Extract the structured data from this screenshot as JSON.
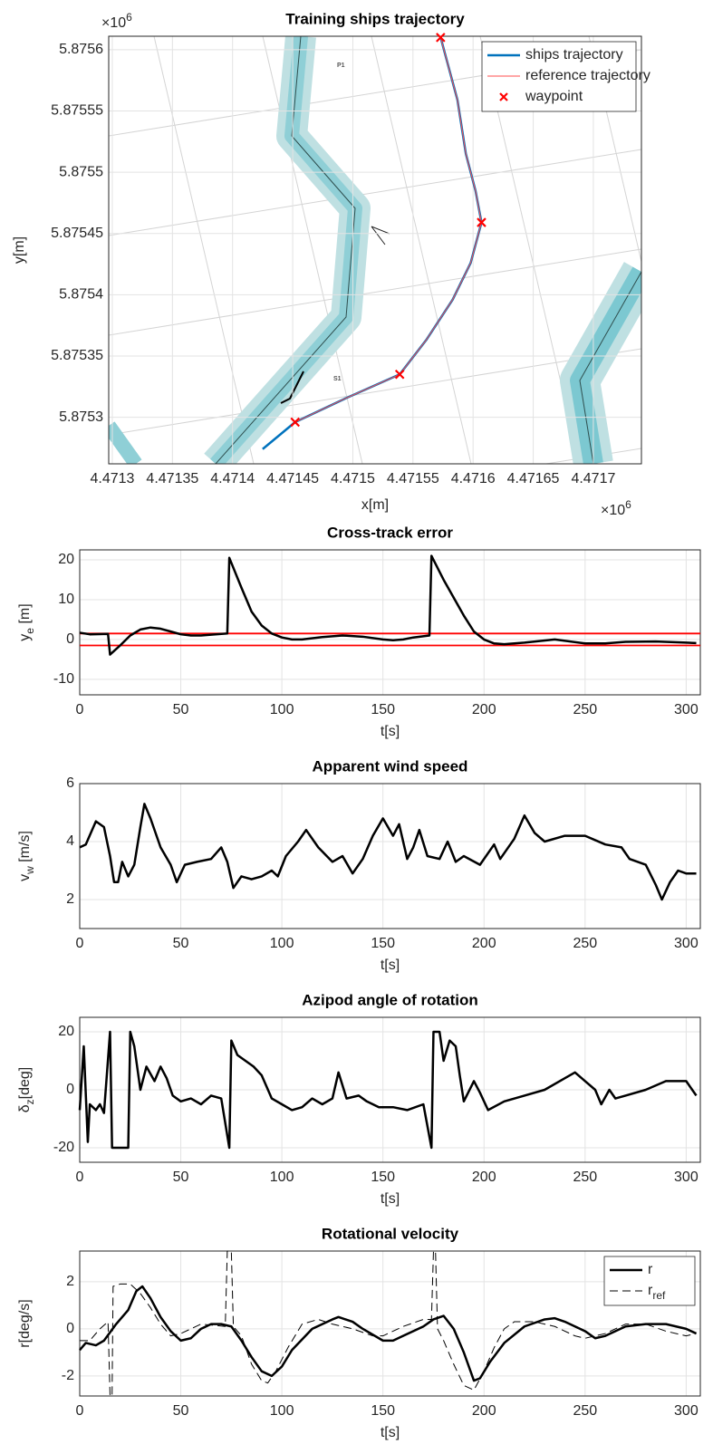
{
  "chart_data": [
    {
      "type": "line",
      "title": "Training ships trajectory",
      "xlabel": "x[m]",
      "ylabel": "y[m]",
      "x_exponent": [
        "×10",
        "6"
      ],
      "y_exponent": [
        "×10",
        "6"
      ],
      "xlim": [
        4.471297,
        4.47174
      ],
      "ylim": [
        5.875262,
        5.875611
      ],
      "xticks": [
        4.4713,
        4.47135,
        4.4714,
        4.47145,
        4.4715,
        4.47155,
        4.4716,
        4.47165,
        4.4717
      ],
      "yticks": [
        5.8753,
        5.87535,
        5.8754,
        5.87545,
        5.8755,
        5.87555,
        5.8756
      ],
      "grid": true,
      "legend": "upper right",
      "annotations": [
        "P1",
        "S1"
      ],
      "series": [
        {
          "name": "ships trajectory",
          "color": "#0072bd",
          "style": "thick",
          "x": [
            4.471573,
            4.471587,
            4.471594,
            4.471602,
            4.471607,
            4.471598,
            4.471583,
            4.471561,
            4.471539,
            4.471493,
            4.471452,
            4.471425
          ],
          "values": [
            5.87561,
            5.875559,
            5.875515,
            5.875485,
            5.875459,
            5.875426,
            5.875396,
            5.875363,
            5.875335,
            5.875315,
            5.875296,
            5.875274
          ]
        },
        {
          "name": "reference trajectory",
          "color": "#ff4d4d",
          "style": "thin",
          "x": [
            4.471573,
            4.471587,
            4.471594,
            4.471602,
            4.471607,
            4.471598,
            4.471583,
            4.471561,
            4.471539,
            4.471493,
            4.471452
          ],
          "values": [
            5.87561,
            5.875559,
            5.875515,
            5.875485,
            5.875459,
            5.875426,
            5.875396,
            5.875363,
            5.875335,
            5.875315,
            5.875296
          ]
        },
        {
          "name": "waypoint",
          "color": "#ff0000",
          "marker": "x",
          "x": [
            4.471573,
            4.471607,
            4.471539,
            4.471452
          ],
          "values": [
            5.87561,
            5.875459,
            5.875335,
            5.875296
          ]
        }
      ]
    },
    {
      "type": "line",
      "title": "Cross-track error",
      "xlabel": "t[s]",
      "ylabel": [
        "y",
        "e",
        " [m]"
      ],
      "xlim": [
        0,
        307
      ],
      "ylim": [
        -13.9,
        22.5
      ],
      "xticks": [
        0,
        50,
        100,
        150,
        200,
        250,
        300
      ],
      "yticks": [
        -10,
        0,
        10,
        20
      ],
      "grid": true,
      "hlines": {
        "color": "#ff0000",
        "values": [
          1.5,
          -1.5
        ]
      },
      "x": [
        0,
        5,
        14,
        15,
        20,
        25,
        30,
        35,
        40,
        45,
        50,
        55,
        60,
        65,
        73,
        74,
        80,
        85,
        90,
        95,
        100,
        105,
        110,
        120,
        130,
        140,
        150,
        155,
        160,
        165,
        173,
        174,
        180,
        190,
        195,
        200,
        205,
        210,
        220,
        235,
        250,
        260,
        270,
        285,
        300,
        305
      ],
      "series": [
        {
          "color": "#000000",
          "values": [
            1.7,
            1.3,
            1.4,
            -3.8,
            -1.5,
            1,
            2.5,
            3,
            2.7,
            2,
            1.3,
            1,
            1,
            1.2,
            1.5,
            20.5,
            13,
            7,
            3.5,
            1.5,
            0.5,
            0,
            0,
            0.6,
            1,
            0.7,
            0,
            -0.2,
            0,
            0.5,
            1,
            21,
            15,
            6,
            2,
            0,
            -1,
            -1.2,
            -0.8,
            0,
            -1,
            -1,
            -0.6,
            -0.5,
            -0.8,
            -0.9
          ]
        }
      ]
    },
    {
      "type": "line",
      "title": "Apparent wind speed",
      "xlabel": "t[s]",
      "ylabel": [
        "v",
        "w",
        " [m/s]"
      ],
      "xlim": [
        0,
        307
      ],
      "ylim": [
        1,
        6
      ],
      "xticks": [
        0,
        50,
        100,
        150,
        200,
        250,
        300
      ],
      "yticks": [
        2,
        4,
        6
      ],
      "grid": true,
      "x": [
        0,
        3,
        8,
        12,
        15,
        17,
        19,
        21,
        24,
        27,
        30,
        32,
        35,
        40,
        45,
        48,
        52,
        58,
        65,
        70,
        73,
        76,
        80,
        85,
        90,
        95,
        98,
        102,
        108,
        112,
        118,
        125,
        130,
        135,
        140,
        145,
        150,
        155,
        158,
        162,
        165,
        168,
        172,
        178,
        182,
        186,
        190,
        198,
        205,
        208,
        215,
        220,
        225,
        230,
        240,
        250,
        260,
        268,
        272,
        280,
        285,
        288,
        292,
        296,
        300,
        305
      ],
      "series": [
        {
          "color": "#000000",
          "values": [
            3.8,
            3.9,
            4.7,
            4.5,
            3.5,
            2.6,
            2.6,
            3.3,
            2.8,
            3.2,
            4.5,
            5.3,
            4.8,
            3.8,
            3.2,
            2.6,
            3.2,
            3.3,
            3.4,
            3.8,
            3.3,
            2.4,
            2.8,
            2.7,
            2.8,
            3,
            2.8,
            3.5,
            4,
            4.4,
            3.8,
            3.3,
            3.5,
            2.9,
            3.4,
            4.2,
            4.8,
            4.2,
            4.6,
            3.4,
            3.8,
            4.4,
            3.5,
            3.4,
            4,
            3.3,
            3.5,
            3.2,
            3.9,
            3.4,
            4.1,
            4.9,
            4.3,
            4,
            4.2,
            4.2,
            3.9,
            3.8,
            3.4,
            3.2,
            2.5,
            2,
            2.6,
            3,
            2.9,
            2.9
          ]
        }
      ]
    },
    {
      "type": "line",
      "title": "Azipod angle of rotation",
      "xlabel": "t[s]",
      "ylabel": [
        "δ",
        "z",
        "[deg]"
      ],
      "xlim": [
        0,
        307
      ],
      "ylim": [
        -25,
        25
      ],
      "xticks": [
        0,
        50,
        100,
        150,
        200,
        250,
        300
      ],
      "yticks": [
        -20,
        0,
        20
      ],
      "grid": true,
      "x": [
        0,
        2,
        4,
        5,
        8,
        10,
        12,
        15,
        16,
        20,
        24,
        25,
        27,
        30,
        33,
        37,
        40,
        43,
        46,
        50,
        55,
        60,
        65,
        70,
        74,
        75,
        78,
        82,
        86,
        90,
        95,
        100,
        105,
        110,
        115,
        120,
        125,
        128,
        132,
        138,
        142,
        148,
        155,
        162,
        170,
        174,
        175,
        178,
        180,
        183,
        186,
        188,
        190,
        195,
        198,
        202,
        210,
        220,
        230,
        240,
        245,
        250,
        255,
        258,
        262,
        265,
        270,
        280,
        290,
        300,
        305
      ],
      "series": [
        {
          "color": "#000000",
          "values": [
            -7,
            15,
            -18,
            -5,
            -7,
            -5,
            -8,
            20,
            -20,
            -20,
            -20,
            20,
            15,
            0,
            8,
            3,
            8,
            4,
            -2,
            -4,
            -3,
            -5,
            -2,
            -3,
            -20,
            17,
            12,
            10,
            8,
            5,
            -3,
            -5,
            -7,
            -6,
            -3,
            -5,
            -3,
            6,
            -3,
            -2,
            -4,
            -6,
            -6,
            -7,
            -5,
            -20,
            20,
            20,
            10,
            17,
            15,
            5,
            -4,
            3,
            -1,
            -7,
            -4,
            -2,
            0,
            4,
            6,
            3,
            0,
            -5,
            0,
            -3,
            -2,
            0,
            3,
            3,
            -2
          ]
        }
      ]
    },
    {
      "type": "line",
      "title": "Rotational velocity",
      "xlabel": "t[s]",
      "ylabel": "r[deg/s]",
      "xlim": [
        0,
        307
      ],
      "ylim": [
        -2.85,
        3.3
      ],
      "xticks": [
        0,
        50,
        100,
        150,
        200,
        250,
        300
      ],
      "yticks": [
        -2,
        0,
        2
      ],
      "grid": true,
      "legend": "upper right",
      "series": [
        {
          "name": [
            "r"
          ],
          "color": "#000000",
          "style": "thick",
          "x": [
            0,
            3,
            8,
            12,
            18,
            24,
            28,
            31,
            35,
            40,
            45,
            50,
            55,
            60,
            65,
            70,
            75,
            80,
            85,
            90,
            95,
            100,
            105,
            115,
            125,
            128,
            135,
            140,
            150,
            155,
            160,
            170,
            175,
            180,
            185,
            190,
            195,
            198,
            203,
            210,
            220,
            230,
            235,
            240,
            250,
            255,
            260,
            270,
            280,
            290,
            300,
            305
          ],
          "values": [
            -0.9,
            -0.6,
            -0.7,
            -0.5,
            0.2,
            0.8,
            1.6,
            1.8,
            1.3,
            0.5,
            -0.1,
            -0.5,
            -0.4,
            0,
            0.2,
            0.2,
            0.1,
            -0.5,
            -1.2,
            -1.8,
            -2,
            -1.6,
            -0.9,
            0,
            0.4,
            0.5,
            0.3,
            0,
            -0.5,
            -0.5,
            -0.3,
            0.1,
            0.4,
            0.55,
            0,
            -1,
            -2.2,
            -2.1,
            -1.4,
            -0.6,
            0.1,
            0.4,
            0.45,
            0.3,
            -0.1,
            -0.4,
            -0.3,
            0.1,
            0.2,
            0.2,
            0,
            -0.2
          ]
        },
        {
          "name": [
            "r",
            "ref"
          ],
          "color": "#000000",
          "style": "dashed",
          "x": [
            0,
            5,
            10,
            14,
            15,
            16,
            16.5,
            20,
            25,
            30,
            35,
            40,
            45,
            50,
            60,
            72,
            73,
            74,
            75,
            76,
            80,
            85,
            90,
            93,
            97,
            103,
            110,
            118,
            125,
            135,
            145,
            150,
            160,
            170,
            174,
            175,
            176,
            177,
            180,
            185,
            190,
            195,
            200,
            205,
            210,
            215,
            225,
            235,
            245,
            250,
            260,
            270,
            280,
            290,
            300,
            305
          ],
          "values": [
            -0.5,
            -0.5,
            0,
            0.3,
            -2.85,
            -2.85,
            1.8,
            1.9,
            1.9,
            1.5,
            0.9,
            0.2,
            -0.3,
            -0.2,
            0.2,
            0.1,
            3.3,
            3.3,
            3.3,
            0.1,
            -0.3,
            -1.5,
            -2.2,
            -2.3,
            -1.8,
            -0.8,
            0.2,
            0.4,
            0.2,
            0,
            -0.3,
            -0.3,
            0.1,
            0.4,
            0.4,
            3.3,
            3.3,
            0,
            -0.5,
            -1.5,
            -2.4,
            -2.6,
            -1.8,
            -0.8,
            0,
            0.3,
            0.3,
            0.1,
            -0.3,
            -0.4,
            -0.2,
            0.2,
            0.2,
            -0.1,
            -0.3,
            -0.2
          ]
        }
      ]
    }
  ]
}
